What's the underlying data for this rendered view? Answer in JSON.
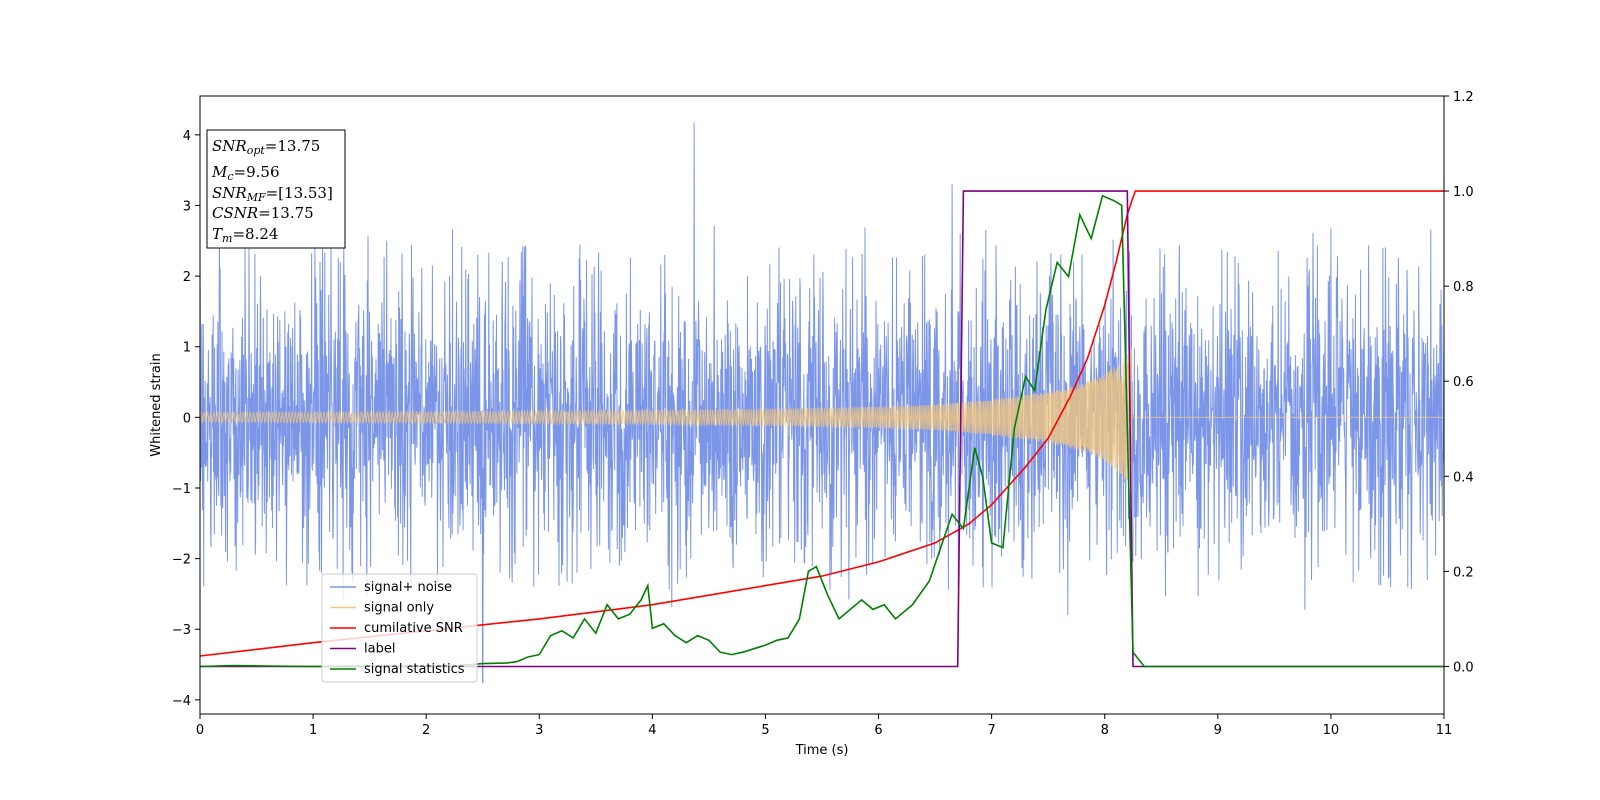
{
  "chart_data": {
    "type": "line",
    "xlabel": "Time (s)",
    "ylabel": "Whitened strain",
    "xlim": [
      0,
      11
    ],
    "ylim_left": [
      -4.2,
      4.55
    ],
    "ylim_right": [
      -0.1,
      1.2
    ],
    "x_ticks": [
      "0",
      "1",
      "2",
      "3",
      "4",
      "5",
      "6",
      "7",
      "8",
      "9",
      "10",
      "11"
    ],
    "y_ticks_left": [
      "−4",
      "−3",
      "−2",
      "−1",
      "0",
      "1",
      "2",
      "3",
      "4"
    ],
    "y_ticks_right": [
      "0.0",
      "0.2",
      "0.4",
      "0.6",
      "0.8",
      "1.0",
      "1.2"
    ],
    "annotation": {
      "snr_opt": {
        "sym": "SNR",
        "sub": "opt",
        "value": "=13.75"
      },
      "mc": {
        "sym": "M",
        "sub": "c",
        "value": "=9.56"
      },
      "snr_mf": {
        "sym": "SNR",
        "sub": "MF",
        "value": "=[13.53]"
      },
      "csnr": {
        "sym": "CSNR",
        "value": "=13.75"
      },
      "tm": {
        "sym": "T",
        "sub": "m",
        "value": "=8.24"
      }
    },
    "legend_position": "lower-left",
    "series": [
      {
        "name": "signal+ noise",
        "color": "#7b96e8",
        "axis": "left",
        "style": "noisy strain, roughly ±2.5 amplitude with spikes to 4.2 near t=4.37 and −3.75 near t=2.5",
        "spikes": [
          [
            2.5,
            -3.75
          ],
          [
            4.37,
            4.17
          ],
          [
            6.65,
            3.3
          ],
          [
            1.65,
            2.5
          ]
        ],
        "noise_sigma": 1.0
      },
      {
        "name": "signal only",
        "color": "#f5c77a",
        "axis": "left",
        "merger_time": 8.24,
        "envelope": [
          [
            0.0,
            0.07
          ],
          [
            2.0,
            0.08
          ],
          [
            4.0,
            0.1
          ],
          [
            5.0,
            0.12
          ],
          [
            6.0,
            0.15
          ],
          [
            6.5,
            0.18
          ],
          [
            7.0,
            0.25
          ],
          [
            7.5,
            0.36
          ],
          [
            7.8,
            0.48
          ],
          [
            8.0,
            0.62
          ],
          [
            8.1,
            0.75
          ],
          [
            8.2,
            0.9
          ],
          [
            8.24,
            1.0
          ],
          [
            8.25,
            0.0
          ],
          [
            11.0,
            0.0
          ]
        ]
      },
      {
        "name": "cumilative SNR",
        "color": "#ff0000",
        "axis": "right",
        "points": [
          [
            0.0,
            0.022
          ],
          [
            1.0,
            0.05
          ],
          [
            2.0,
            0.075
          ],
          [
            3.0,
            0.1
          ],
          [
            4.0,
            0.13
          ],
          [
            5.0,
            0.17
          ],
          [
            5.5,
            0.19
          ],
          [
            6.0,
            0.22
          ],
          [
            6.5,
            0.26
          ],
          [
            6.8,
            0.3
          ],
          [
            7.0,
            0.34
          ],
          [
            7.3,
            0.42
          ],
          [
            7.5,
            0.48
          ],
          [
            7.7,
            0.57
          ],
          [
            7.85,
            0.65
          ],
          [
            8.0,
            0.76
          ],
          [
            8.1,
            0.85
          ],
          [
            8.2,
            0.95
          ],
          [
            8.24,
            0.98
          ],
          [
            8.27,
            1.0
          ],
          [
            11.0,
            1.0
          ]
        ]
      },
      {
        "name": "label",
        "color": "#800080",
        "axis": "right",
        "points": [
          [
            0.0,
            0.0
          ],
          [
            6.7,
            0.0
          ],
          [
            6.75,
            1.0
          ],
          [
            8.2,
            1.0
          ],
          [
            8.25,
            0.0
          ],
          [
            11.0,
            0.0
          ]
        ]
      },
      {
        "name": "signal statistics",
        "color": "#008000",
        "axis": "right",
        "points": [
          [
            0.0,
            0.0
          ],
          [
            0.3,
            0.002
          ],
          [
            0.6,
            0.001
          ],
          [
            1.0,
            0.0
          ],
          [
            1.5,
            0.001
          ],
          [
            2.0,
            0.001
          ],
          [
            2.3,
            0.002
          ],
          [
            2.5,
            0.006
          ],
          [
            2.7,
            0.007
          ],
          [
            2.8,
            0.01
          ],
          [
            2.9,
            0.02
          ],
          [
            3.0,
            0.025
          ],
          [
            3.1,
            0.065
          ],
          [
            3.2,
            0.075
          ],
          [
            3.3,
            0.06
          ],
          [
            3.4,
            0.1
          ],
          [
            3.5,
            0.07
          ],
          [
            3.6,
            0.13
          ],
          [
            3.7,
            0.1
          ],
          [
            3.8,
            0.11
          ],
          [
            3.9,
            0.14
          ],
          [
            3.96,
            0.17
          ],
          [
            4.0,
            0.08
          ],
          [
            4.1,
            0.09
          ],
          [
            4.2,
            0.065
          ],
          [
            4.3,
            0.05
          ],
          [
            4.4,
            0.065
          ],
          [
            4.5,
            0.055
          ],
          [
            4.6,
            0.03
          ],
          [
            4.7,
            0.025
          ],
          [
            4.8,
            0.03
          ],
          [
            5.0,
            0.045
          ],
          [
            5.1,
            0.055
          ],
          [
            5.2,
            0.06
          ],
          [
            5.3,
            0.1
          ],
          [
            5.38,
            0.2
          ],
          [
            5.45,
            0.21
          ],
          [
            5.55,
            0.15
          ],
          [
            5.65,
            0.1
          ],
          [
            5.75,
            0.12
          ],
          [
            5.85,
            0.14
          ],
          [
            5.95,
            0.12
          ],
          [
            6.05,
            0.13
          ],
          [
            6.15,
            0.1
          ],
          [
            6.3,
            0.13
          ],
          [
            6.45,
            0.18
          ],
          [
            6.55,
            0.25
          ],
          [
            6.65,
            0.32
          ],
          [
            6.75,
            0.29
          ],
          [
            6.85,
            0.46
          ],
          [
            6.92,
            0.4
          ],
          [
            7.0,
            0.26
          ],
          [
            7.1,
            0.25
          ],
          [
            7.2,
            0.5
          ],
          [
            7.3,
            0.61
          ],
          [
            7.38,
            0.58
          ],
          [
            7.48,
            0.75
          ],
          [
            7.58,
            0.85
          ],
          [
            7.68,
            0.82
          ],
          [
            7.78,
            0.95
          ],
          [
            7.88,
            0.9
          ],
          [
            7.98,
            0.99
          ],
          [
            8.08,
            0.98
          ],
          [
            8.15,
            0.97
          ],
          [
            8.2,
            0.5
          ],
          [
            8.25,
            0.03
          ],
          [
            8.35,
            0.0
          ],
          [
            11.0,
            0.0
          ]
        ]
      }
    ]
  }
}
